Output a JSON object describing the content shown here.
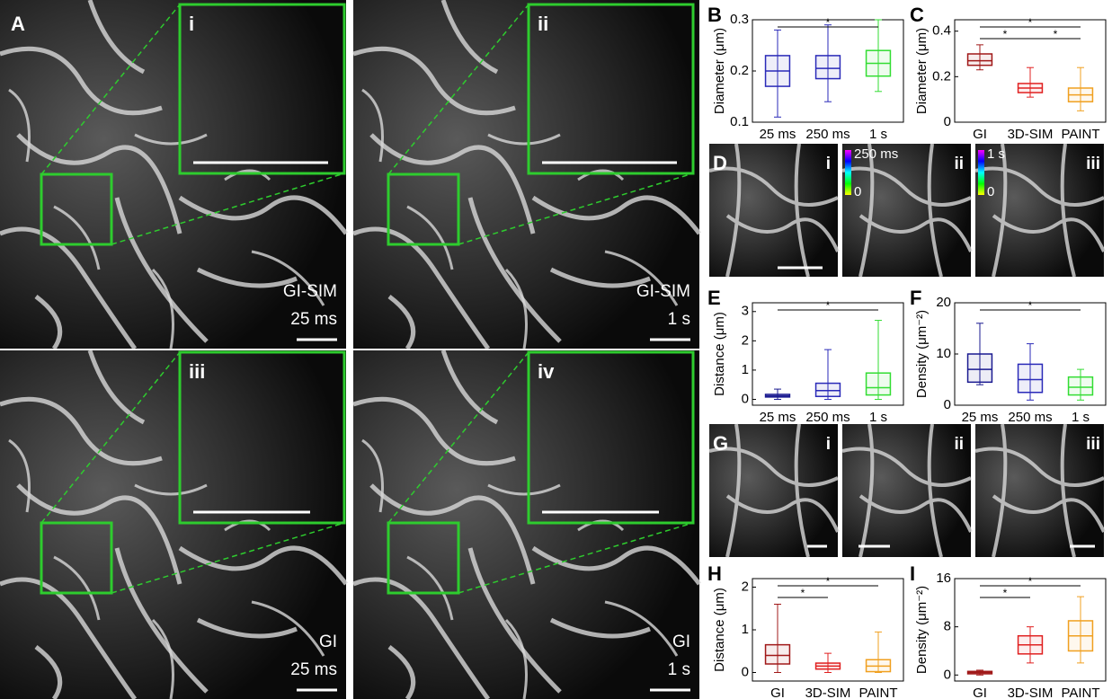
{
  "images": {
    "A": {
      "label": "A",
      "panels": [
        {
          "roman": "i",
          "name": "GI-SIM",
          "time": "25 ms"
        },
        {
          "roman": "ii",
          "name": "GI-SIM",
          "time": "1 s"
        },
        {
          "roman": "iii",
          "name": "GI",
          "time": "25 ms"
        },
        {
          "roman": "iv",
          "name": "GI",
          "time": "1 s"
        }
      ]
    },
    "D": {
      "label": "D",
      "romans": [
        "i",
        "ii",
        "iii"
      ],
      "colorbars": [
        {
          "top": "250 ms",
          "bottom": "0"
        },
        {
          "top": "1 s",
          "bottom": "0"
        }
      ]
    },
    "G": {
      "label": "G",
      "romans": [
        "i",
        "ii",
        "iii"
      ]
    }
  },
  "chart_data": [
    {
      "type": "box",
      "panel": "B",
      "y_label": "Diameter (μm)",
      "categories": [
        "25 ms",
        "250 ms",
        "1 s"
      ],
      "colors": [
        "#2a2ab8",
        "#2a2ab8",
        "#33dd33"
      ],
      "ylim": [
        0.1,
        0.3
      ],
      "yticks": [
        0.1,
        0.2,
        0.3
      ],
      "boxes": [
        {
          "low": 0.11,
          "q1": 0.17,
          "median": 0.2,
          "q3": 0.23,
          "high": 0.28
        },
        {
          "low": 0.14,
          "q1": 0.185,
          "median": 0.205,
          "q3": 0.23,
          "high": 0.29
        },
        {
          "low": 0.16,
          "q1": 0.19,
          "median": 0.215,
          "q3": 0.24,
          "high": 0.3
        }
      ],
      "brackets": [
        {
          "from": 0,
          "to": 2,
          "label": "*"
        }
      ]
    },
    {
      "type": "box",
      "panel": "C",
      "y_label": "Diameter (μm)",
      "categories": [
        "GI",
        "3D-SIM",
        "PAINT"
      ],
      "colors": [
        "#a01818",
        "#e02020",
        "#f0a020"
      ],
      "ylim": [
        0,
        0.45
      ],
      "yticks": [
        0,
        0.2,
        0.4
      ],
      "boxes": [
        {
          "low": 0.23,
          "q1": 0.25,
          "median": 0.27,
          "q3": 0.3,
          "high": 0.34
        },
        {
          "low": 0.11,
          "q1": 0.13,
          "median": 0.15,
          "q3": 0.17,
          "high": 0.24
        },
        {
          "low": 0.05,
          "q1": 0.09,
          "median": 0.12,
          "q3": 0.15,
          "high": 0.24
        }
      ],
      "brackets": [
        {
          "from": 0,
          "to": 2,
          "label": "*"
        },
        {
          "from": 0,
          "to": 1,
          "label": "*"
        },
        {
          "from": 1,
          "to": 2,
          "label": "*"
        }
      ]
    },
    {
      "type": "box",
      "panel": "E",
      "y_label": "Distance (μm)",
      "categories": [
        "25 ms",
        "250 ms",
        "1 s"
      ],
      "colors": [
        "#1a1a90",
        "#2a2ab8",
        "#33dd33"
      ],
      "ylim": [
        -0.2,
        3.3
      ],
      "yticks": [
        0,
        1,
        2,
        3
      ],
      "boxes": [
        {
          "low": 0,
          "q1": 0.08,
          "median": 0.12,
          "q3": 0.17,
          "high": 0.35
        },
        {
          "low": 0,
          "q1": 0.1,
          "median": 0.3,
          "q3": 0.55,
          "high": 1.7
        },
        {
          "low": 0,
          "q1": 0.15,
          "median": 0.4,
          "q3": 0.9,
          "high": 2.7
        }
      ],
      "brackets": [
        {
          "from": 0,
          "to": 2,
          "label": "*"
        }
      ]
    },
    {
      "type": "box",
      "panel": "F",
      "y_label": "Density (μm⁻²)",
      "categories": [
        "25 ms",
        "250 ms",
        "1 s"
      ],
      "colors": [
        "#1a1a90",
        "#2a2ab8",
        "#33dd33"
      ],
      "ylim": [
        0,
        20
      ],
      "yticks": [
        0,
        10,
        20
      ],
      "boxes": [
        {
          "low": 4,
          "q1": 4.5,
          "median": 7,
          "q3": 10,
          "high": 16
        },
        {
          "low": 1,
          "q1": 2.5,
          "median": 5,
          "q3": 8,
          "high": 12
        },
        {
          "low": 1,
          "q1": 2,
          "median": 3.5,
          "q3": 5.5,
          "high": 7
        }
      ],
      "brackets": [
        {
          "from": 0,
          "to": 2,
          "label": "*"
        }
      ]
    },
    {
      "type": "box",
      "panel": "H",
      "y_label": "Distance (μm)",
      "categories": [
        "GI",
        "3D-SIM",
        "PAINT"
      ],
      "colors": [
        "#a01818",
        "#e02020",
        "#f0a020"
      ],
      "ylim": [
        -0.2,
        2.2
      ],
      "yticks": [
        0,
        1,
        2
      ],
      "boxes": [
        {
          "low": 0,
          "q1": 0.2,
          "median": 0.4,
          "q3": 0.65,
          "high": 1.6
        },
        {
          "low": 0,
          "q1": 0.08,
          "median": 0.15,
          "q3": 0.22,
          "high": 0.45
        },
        {
          "low": 0,
          "q1": 0.02,
          "median": 0.15,
          "q3": 0.3,
          "high": 0.95
        }
      ],
      "brackets": [
        {
          "from": 0,
          "to": 2,
          "label": "*"
        },
        {
          "from": 0,
          "to": 1,
          "label": "*"
        }
      ]
    },
    {
      "type": "box",
      "panel": "I",
      "y_label": "Density (μm⁻²)",
      "categories": [
        "GI",
        "3D-SIM",
        "PAINT"
      ],
      "colors": [
        "#a01818",
        "#e02020",
        "#f0a020"
      ],
      "ylim": [
        -1,
        16
      ],
      "yticks": [
        0,
        8,
        16
      ],
      "boxes": [
        {
          "low": 0,
          "q1": 0.2,
          "median": 0.4,
          "q3": 0.6,
          "high": 0.8
        },
        {
          "low": 2,
          "q1": 3.5,
          "median": 5,
          "q3": 6.5,
          "high": 8
        },
        {
          "low": 2,
          "q1": 4,
          "median": 6.5,
          "q3": 9,
          "high": 13
        }
      ],
      "brackets": [
        {
          "from": 0,
          "to": 2,
          "label": "*"
        },
        {
          "from": 0,
          "to": 1,
          "label": "*"
        }
      ]
    }
  ]
}
